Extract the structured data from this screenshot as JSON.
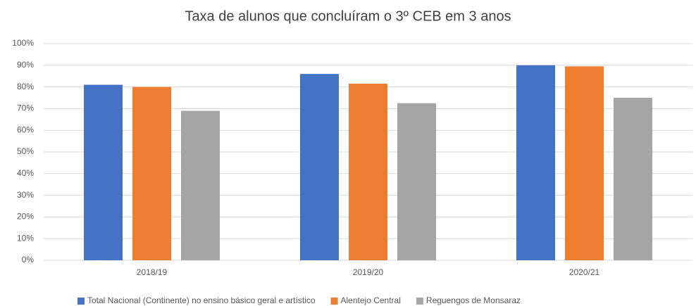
{
  "chart_data": {
    "type": "bar",
    "title": "Taxa de alunos que concluíram o 3º CEB em 3 anos",
    "categories": [
      "2018/19",
      "2019/20",
      "2020/21"
    ],
    "series": [
      {
        "name": "Total Nacional (Continente) no ensino básico geral e artístico",
        "color": "#4472c4",
        "values": [
          81,
          86,
          90
        ]
      },
      {
        "name": "Alentejo Central",
        "color": "#ed7d31",
        "values": [
          80,
          81.5,
          89.5
        ]
      },
      {
        "name": "Reguengos de Monsaraz",
        "color": "#a5a5a5",
        "values": [
          69,
          72.5,
          75
        ]
      }
    ],
    "ylim": [
      0,
      100
    ],
    "yticks": [
      {
        "value": 0,
        "label": "0%"
      },
      {
        "value": 10,
        "label": "10%"
      },
      {
        "value": 20,
        "label": "20%"
      },
      {
        "value": 30,
        "label": "30%"
      },
      {
        "value": 40,
        "label": "40%"
      },
      {
        "value": 50,
        "label": "50%"
      },
      {
        "value": 60,
        "label": "60%"
      },
      {
        "value": 70,
        "label": "70%"
      },
      {
        "value": 80,
        "label": "80%"
      },
      {
        "value": 90,
        "label": "90%"
      },
      {
        "value": 100,
        "label": "100%"
      }
    ],
    "grid": true,
    "legend": "bottom"
  }
}
